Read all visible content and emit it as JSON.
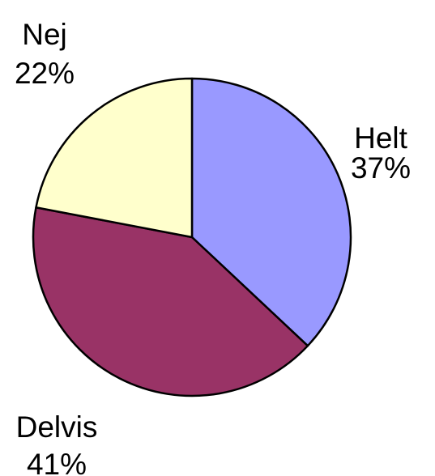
{
  "chart_data": {
    "type": "pie",
    "categories": [
      "Helt",
      "Delvis",
      "Nej"
    ],
    "values": [
      37,
      41,
      22
    ],
    "value_labels": [
      "37%",
      "41%",
      "22%"
    ],
    "colors": [
      "#9999ff",
      "#993366",
      "#ffffcc"
    ]
  }
}
